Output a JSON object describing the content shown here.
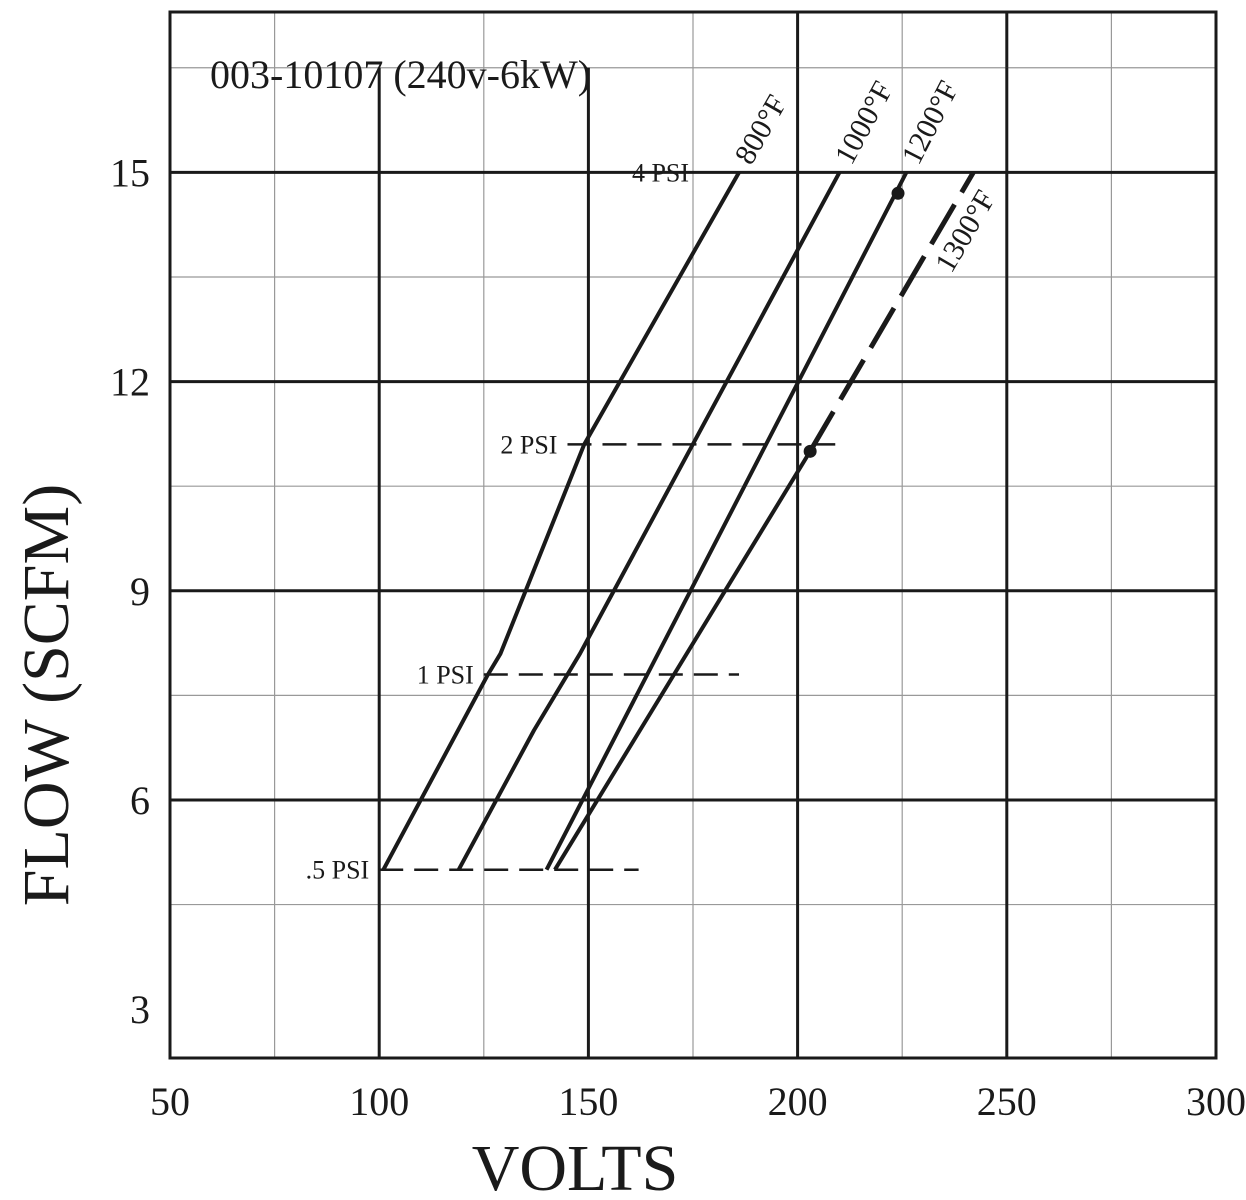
{
  "chart_data": {
    "type": "line",
    "title": "003-10107 (240v-6kW)",
    "xlabel": "VOLTS",
    "ylabel": "FLOW  (SCFM)",
    "xlim": [
      50,
      300
    ],
    "ylim": [
      2.3,
      17.3
    ],
    "x_ticks": [
      50,
      100,
      150,
      200,
      250,
      300
    ],
    "y_ticks": [
      3,
      6,
      9,
      12,
      15
    ],
    "x_tick_labels": [
      "50",
      "100",
      "150",
      "200",
      "250",
      "300"
    ],
    "y_tick_labels": [
      "3",
      "6",
      "9",
      "12",
      "15"
    ],
    "grid": true,
    "series": [
      {
        "name": "800°F",
        "style": "solid",
        "points": [
          [
            101,
            5.0
          ],
          [
            126,
            7.8
          ],
          [
            129,
            8.1
          ],
          [
            149,
            11.1
          ],
          [
            186,
            15.0
          ]
        ]
      },
      {
        "name": "1000°F",
        "style": "solid",
        "points": [
          [
            119,
            5.0
          ],
          [
            137,
            7.0
          ],
          [
            148,
            8.1
          ],
          [
            210,
            15.0
          ]
        ]
      },
      {
        "name": "1200°F",
        "style": "solid",
        "points": [
          [
            140,
            5.0
          ],
          [
            226,
            15.0
          ]
        ]
      },
      {
        "name": "1300°F",
        "style": "solid-then-dashed",
        "points": [
          [
            142,
            5.0
          ],
          [
            203,
            11.0
          ],
          [
            242,
            15.0
          ]
        ]
      }
    ],
    "pressure_lines": [
      {
        "label": ".5 PSI",
        "y": 5.0,
        "x_start": 100,
        "x_end": 162
      },
      {
        "label": "1 PSI",
        "y": 7.8,
        "x_start": 125,
        "x_end": 186
      },
      {
        "label": "2 PSI",
        "y": 11.1,
        "x_start": 145,
        "x_end": 209
      },
      {
        "label": "4 PSI",
        "y": 15.0,
        "x_start": 186,
        "x_end": 186
      }
    ],
    "markers": [
      {
        "x": 224,
        "y": 14.7
      },
      {
        "x": 203,
        "y": 11.0
      }
    ]
  }
}
